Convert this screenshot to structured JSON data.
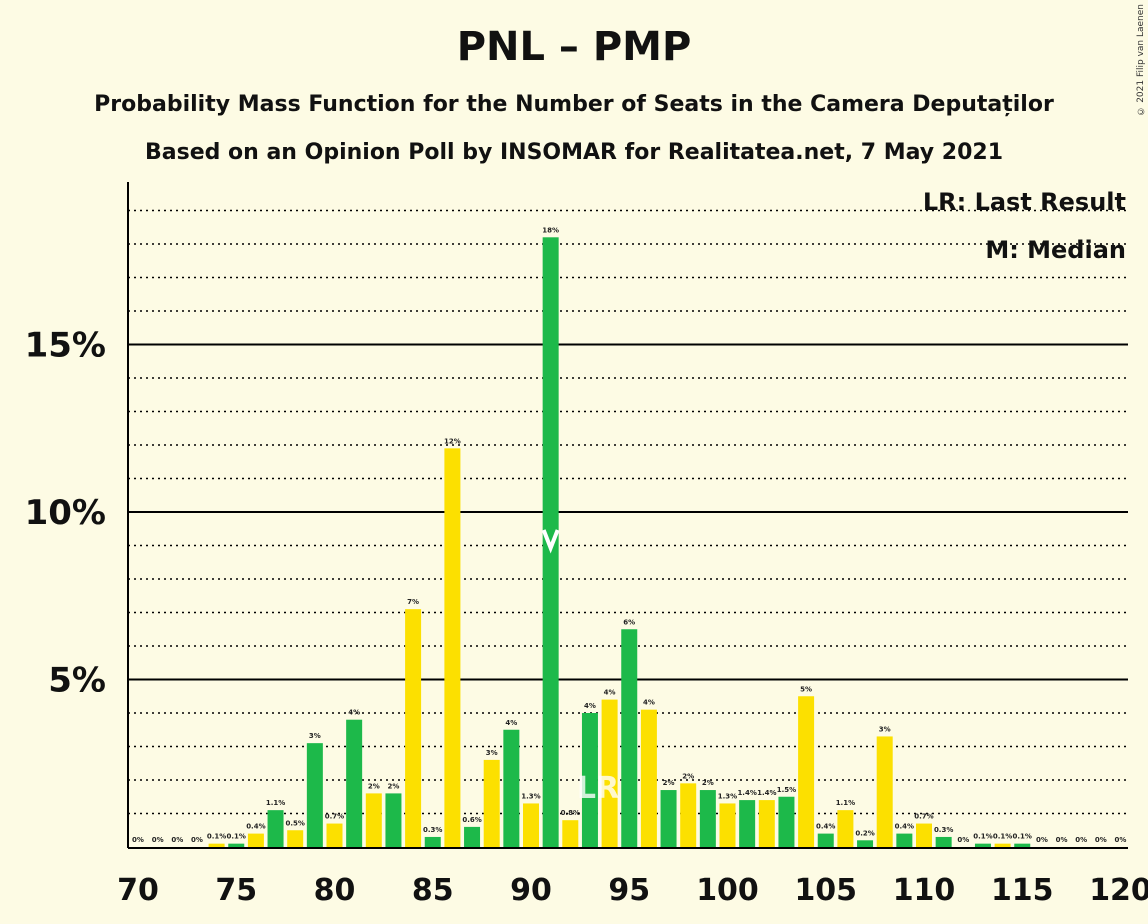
{
  "title": "PNL – PMP",
  "subtitle_1": "Probability Mass Function for the Number of Seats in the Camera Deputaților",
  "subtitle_2": "Based on an Opinion Poll by INSOMAR for Realitatea.net, 7 May 2021",
  "copyright": "© 2021 Filip van Laenen",
  "legend": {
    "lr": "LR: Last Result",
    "m": "M: Median"
  },
  "colors": {
    "green": "#1db94a",
    "yellow": "#fce000",
    "background": "#fdfbe4"
  },
  "chart_data": {
    "type": "bar",
    "x_range": [
      70,
      120
    ],
    "y_range": [
      0,
      19
    ],
    "y_ticks": [
      {
        "value": 5,
        "label": "5%"
      },
      {
        "value": 10,
        "label": "10%"
      },
      {
        "value": 15,
        "label": "15%"
      }
    ],
    "x_ticks": [
      70,
      75,
      80,
      85,
      90,
      95,
      100,
      105,
      110,
      115,
      120
    ],
    "last_result_seat": 93,
    "median_seat": 91,
    "bars": [
      {
        "seat": 70,
        "value": 0,
        "label": "0%"
      },
      {
        "seat": 71,
        "value": 0,
        "label": "0%"
      },
      {
        "seat": 72,
        "value": 0,
        "label": "0%"
      },
      {
        "seat": 73,
        "value": 0,
        "label": "0%"
      },
      {
        "seat": 74,
        "value": 0.1,
        "label": "0.1%"
      },
      {
        "seat": 75,
        "value": 0.1,
        "label": "0.1%"
      },
      {
        "seat": 76,
        "value": 0.4,
        "label": "0.4%"
      },
      {
        "seat": 77,
        "value": 1.1,
        "label": "1.1%"
      },
      {
        "seat": 78,
        "value": 0.5,
        "label": "0.5%"
      },
      {
        "seat": 79,
        "value": 3.1,
        "label": "3%"
      },
      {
        "seat": 80,
        "value": 0.7,
        "label": "0.7%"
      },
      {
        "seat": 81,
        "value": 3.8,
        "label": "4%"
      },
      {
        "seat": 82,
        "value": 1.6,
        "label": "2%"
      },
      {
        "seat": 83,
        "value": 1.6,
        "label": "2%"
      },
      {
        "seat": 84,
        "value": 7.1,
        "label": "7%"
      },
      {
        "seat": 85,
        "value": 0.3,
        "label": "0.3%"
      },
      {
        "seat": 86,
        "value": 11.9,
        "label": "12%"
      },
      {
        "seat": 87,
        "value": 0.6,
        "label": "0.6%"
      },
      {
        "seat": 88,
        "value": 2.6,
        "label": "3%"
      },
      {
        "seat": 89,
        "value": 3.5,
        "label": "4%"
      },
      {
        "seat": 90,
        "value": 1.3,
        "label": "1.3%"
      },
      {
        "seat": 91,
        "value": 18.2,
        "label": "18%"
      },
      {
        "seat": 92,
        "value": 0.8,
        "label": "0.8%"
      },
      {
        "seat": 93,
        "value": 4.0,
        "label": "4%"
      },
      {
        "seat": 94,
        "value": 4.4,
        "label": "4%"
      },
      {
        "seat": 95,
        "value": 6.5,
        "label": "6%"
      },
      {
        "seat": 96,
        "value": 4.1,
        "label": "4%"
      },
      {
        "seat": 97,
        "value": 1.7,
        "label": "2%"
      },
      {
        "seat": 98,
        "value": 1.9,
        "label": "2%"
      },
      {
        "seat": 99,
        "value": 1.7,
        "label": "2%"
      },
      {
        "seat": 100,
        "value": 1.3,
        "label": "1.3%"
      },
      {
        "seat": 101,
        "value": 1.4,
        "label": "1.4%"
      },
      {
        "seat": 102,
        "value": 1.4,
        "label": "1.4%"
      },
      {
        "seat": 103,
        "value": 1.5,
        "label": "1.5%"
      },
      {
        "seat": 104,
        "value": 4.5,
        "label": "5%"
      },
      {
        "seat": 105,
        "value": 0.4,
        "label": "0.4%"
      },
      {
        "seat": 106,
        "value": 1.1,
        "label": "1.1%"
      },
      {
        "seat": 107,
        "value": 0.2,
        "label": "0.2%"
      },
      {
        "seat": 108,
        "value": 3.3,
        "label": "3%"
      },
      {
        "seat": 109,
        "value": 0.4,
        "label": "0.4%"
      },
      {
        "seat": 110,
        "value": 0.7,
        "label": "0.7%"
      },
      {
        "seat": 111,
        "value": 0.3,
        "label": "0.3%"
      },
      {
        "seat": 112,
        "value": 0,
        "label": "0%"
      },
      {
        "seat": 113,
        "value": 0.1,
        "label": "0.1%"
      },
      {
        "seat": 114,
        "value": 0.1,
        "label": "0.1%"
      },
      {
        "seat": 115,
        "value": 0.1,
        "label": "0.1%"
      },
      {
        "seat": 116,
        "value": 0,
        "label": "0%"
      },
      {
        "seat": 117,
        "value": 0,
        "label": "0%"
      },
      {
        "seat": 118,
        "value": 0,
        "label": "0%"
      },
      {
        "seat": 119,
        "value": 0,
        "label": "0%"
      },
      {
        "seat": 120,
        "value": 0,
        "label": "0%"
      }
    ]
  }
}
